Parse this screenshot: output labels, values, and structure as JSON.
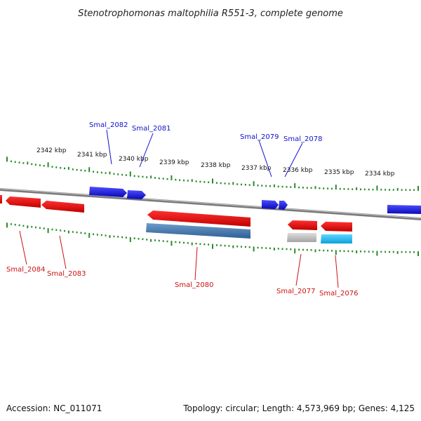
{
  "title": "Stenotrophomonas maltophilia R551-3, complete genome",
  "ticks": {
    "labels": [
      "2342 kbp",
      "2341 kbp",
      "2340 kbp",
      "2339 kbp",
      "2338 kbp",
      "2337 kbp",
      "2336 kbp",
      "2335 kbp",
      "2334 kbp"
    ]
  },
  "genes_top": [
    {
      "name": "Smal_2082"
    },
    {
      "name": "Smal_2081"
    },
    {
      "name": "Smal_2079"
    },
    {
      "name": "Smal_2078"
    }
  ],
  "genes_bottom": [
    {
      "name": "Smal_2084"
    },
    {
      "name": "Smal_2083"
    },
    {
      "name": "Smal_2080"
    },
    {
      "name": "Smal_2077"
    },
    {
      "name": "Smal_2076"
    }
  ],
  "colors": {
    "forward": "#1a1aee",
    "reverse": "#ee1111",
    "feature_steel": "#4a7fb5",
    "feature_gray": "#b8b8b8",
    "feature_cyan": "#18b8ee",
    "ticks": "#2a8a2a",
    "backbone": "#8a8a8a",
    "label_top": "#1111cc",
    "label_bottom": "#cc1111"
  },
  "footer": {
    "accession": "Accession: NC_011071",
    "info": "Topology: circular; Length: 4,573,969 bp; Genes: 4,125"
  }
}
